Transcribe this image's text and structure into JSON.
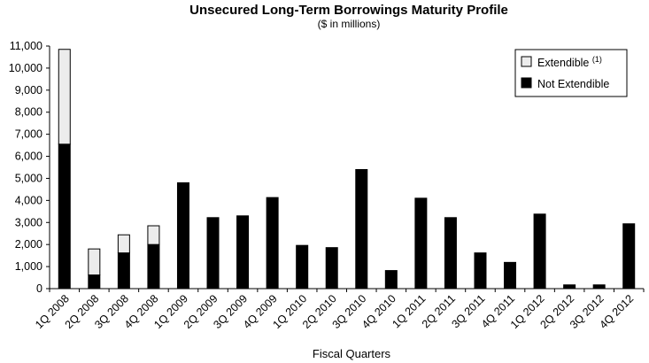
{
  "chart_data": {
    "type": "bar",
    "stacked": true,
    "title": "Unsecured Long-Term Borrowings Maturity Profile",
    "subtitle": "($ in millions)",
    "xlabel": "Fiscal Quarters",
    "ylabel": "",
    "ylim": [
      0,
      11000
    ],
    "yticks": [
      0,
      1000,
      2000,
      3000,
      4000,
      5000,
      6000,
      7000,
      8000,
      9000,
      10000,
      11000
    ],
    "ytick_labels": [
      "0",
      "1,000",
      "2,000",
      "3,000",
      "4,000",
      "5,000",
      "6,000",
      "7,000",
      "8,000",
      "9,000",
      "10,000",
      "11,000"
    ],
    "grid": false,
    "legend_position": "top-right",
    "categories": [
      "1Q 2008",
      "2Q 2008",
      "3Q 2008",
      "4Q 2008",
      "1Q 2009",
      "2Q 2009",
      "3Q 2009",
      "4Q 2009",
      "1Q 2010",
      "2Q 2010",
      "3Q 2010",
      "4Q 2010",
      "1Q 2011",
      "2Q 2011",
      "3Q 2011",
      "4Q 2011",
      "1Q 2012",
      "2Q 2012",
      "3Q 2012",
      "4Q 2012"
    ],
    "series": [
      {
        "name": "Not Extendible",
        "color": "#000000",
        "values": [
          6550,
          620,
          1620,
          2000,
          4800,
          3220,
          3300,
          4130,
          1960,
          1860,
          5400,
          820,
          4100,
          3220,
          1620,
          1190,
          3380,
          170,
          170,
          2940
        ]
      },
      {
        "name": "Extendible",
        "legend_superscript": "(1)",
        "color": "#ececec",
        "values": [
          4300,
          1180,
          820,
          850,
          0,
          0,
          0,
          0,
          0,
          0,
          0,
          0,
          0,
          0,
          0,
          0,
          0,
          0,
          0,
          0
        ]
      }
    ]
  }
}
